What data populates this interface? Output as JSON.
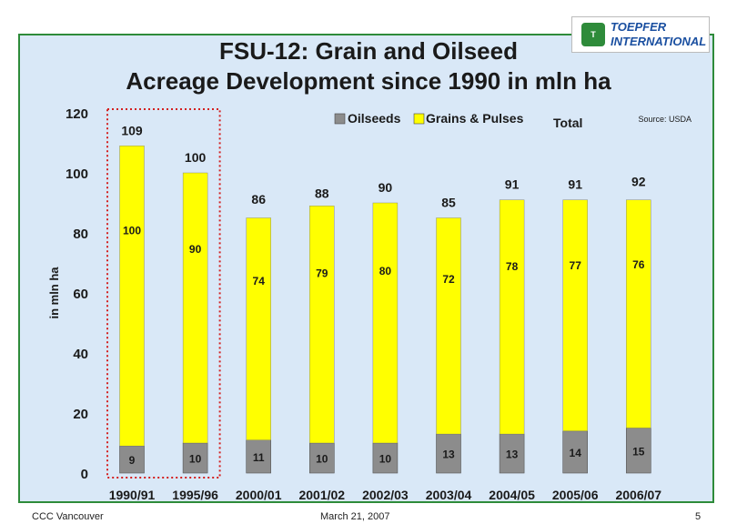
{
  "slide": {
    "title_line1": "FSU-12: Grain and Oilseed",
    "title_line2": "Acreage Development since 1990 in mln ha",
    "source": "Source: USDA",
    "logo_line1": "TOEPFER",
    "logo_line2": "INTERNATIONAL",
    "footer_left": "CCC Vancouver",
    "footer_center": "March 21, 2007",
    "footer_right": "5"
  },
  "chart_data": {
    "type": "bar",
    "stacked": true,
    "ylabel": "in mln ha",
    "ylim": [
      0,
      120
    ],
    "yticks": [
      0,
      20,
      40,
      60,
      80,
      100,
      120
    ],
    "legend_position": "top-right",
    "highlight": [
      "1990/91",
      "1995/96"
    ],
    "categories": [
      "1990/91",
      "1995/96",
      "2000/01",
      "2001/02",
      "2002/03",
      "2003/04",
      "2004/05",
      "2005/06",
      "2006/07"
    ],
    "series": [
      {
        "name": "Oilseeds",
        "color": "#8c8c8c",
        "values": [
          9,
          10,
          11,
          10,
          10,
          13,
          13,
          14,
          15
        ]
      },
      {
        "name": "Grains & Pulses",
        "color": "#ffff00",
        "values": [
          100,
          90,
          74,
          79,
          80,
          72,
          78,
          77,
          76
        ]
      }
    ],
    "totals_label": "Total",
    "totals": [
      109,
      100,
      86,
      88,
      90,
      85,
      91,
      91,
      92
    ]
  }
}
